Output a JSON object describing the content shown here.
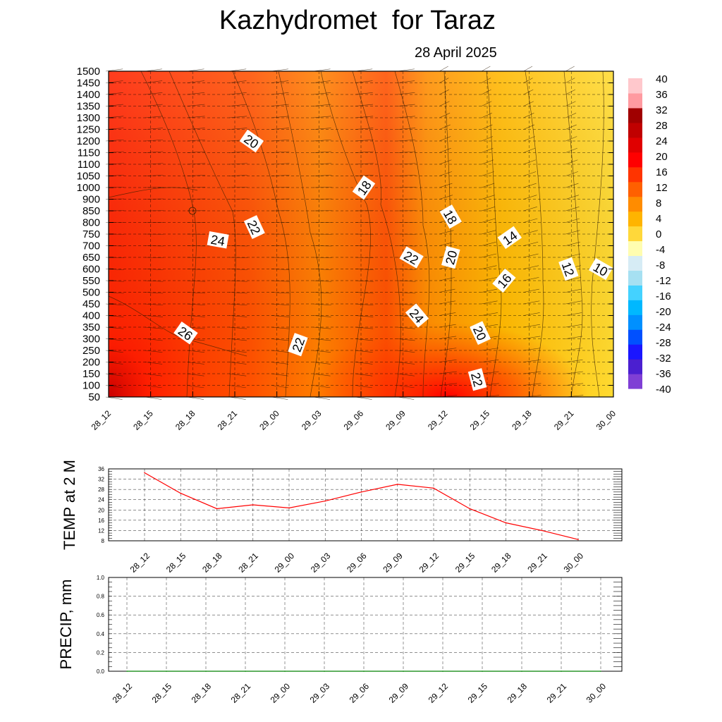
{
  "header": {
    "title": "Kazhydromet  for Taraz",
    "date": "28 April 2025"
  },
  "chart_data": [
    {
      "type": "heatmap",
      "x_ticks": [
        "28_12",
        "28_15",
        "28_18",
        "28_21",
        "29_00",
        "29_03",
        "29_06",
        "29_09",
        "29_12",
        "29_15",
        "29_18",
        "29_21",
        "30_00"
      ],
      "y_ticks": [
        50,
        100,
        150,
        200,
        250,
        300,
        350,
        400,
        450,
        500,
        550,
        600,
        650,
        700,
        750,
        800,
        850,
        900,
        1000,
        1050,
        1100,
        1150,
        1200,
        1250,
        1300,
        1350,
        1400,
        1450,
        1500
      ],
      "colorbar_ticks": [
        40,
        36,
        32,
        28,
        24,
        20,
        16,
        12,
        8,
        4,
        0,
        -4,
        -8,
        -12,
        -16,
        -20,
        -24,
        -28,
        -32,
        -36,
        -40
      ],
      "colorbar_range": [
        -40,
        40
      ],
      "grid": "dashed horizontal and vertical",
      "temperature_grid_approx": [
        [
          29,
          27,
          26,
          25,
          23,
          22,
          20,
          24,
          20,
          18,
          14,
          12,
          8
        ],
        [
          27,
          26,
          25,
          24,
          23,
          22,
          20,
          23,
          20,
          17,
          14,
          11,
          9
        ],
        [
          26,
          25,
          24,
          23,
          22,
          21,
          20,
          22,
          19,
          16,
          13,
          11,
          9
        ],
        [
          24,
          24,
          23,
          22,
          21,
          20,
          18,
          20,
          18,
          15,
          12,
          10,
          9
        ],
        [
          23,
          23,
          22,
          21,
          20,
          19,
          17,
          19,
          17,
          14,
          11,
          9,
          8
        ]
      ],
      "contour_labels": [
        {
          "text": "20",
          "x": "28_21+1.2h",
          "level_hpa": 1200
        },
        {
          "text": "18",
          "x": "29_06+0.2h",
          "level_hpa": 1000
        },
        {
          "text": "18",
          "x": "29_12+0.4h",
          "level_hpa": 825
        },
        {
          "text": "22",
          "x": "28_21+1.4h",
          "level_hpa": 780
        },
        {
          "text": "24",
          "x": "28_18+1.8h",
          "level_hpa": 725
        },
        {
          "text": "14",
          "x": "29_15+1.6h",
          "level_hpa": 735
        },
        {
          "text": "22",
          "x": "29_09+0.6h",
          "level_hpa": 650
        },
        {
          "text": "20",
          "x": "29_12+0.4h",
          "level_hpa": 650
        },
        {
          "text": "12",
          "x": "29_21-0.2h",
          "level_hpa": 600
        },
        {
          "text": "10",
          "x": "29_21+2.1h",
          "level_hpa": 600
        },
        {
          "text": "16",
          "x": "29_15+1.2h",
          "level_hpa": 550
        },
        {
          "text": "24",
          "x": "29_09+1.0h",
          "level_hpa": 400
        },
        {
          "text": "26",
          "x": "28_15+2.5h",
          "level_hpa": 325
        },
        {
          "text": "22",
          "x": "29_00+1.5h",
          "level_hpa": 275
        },
        {
          "text": "20",
          "x": "29_12+2.5h",
          "level_hpa": 325
        },
        {
          "text": "22",
          "x": "29_12+2.3h",
          "level_hpa": 125
        }
      ],
      "colors": [
        "#7f3fd5",
        "#4b1fd0",
        "#1a16ff",
        "#0050ff",
        "#0090ff",
        "#00b8ff",
        "#44d2ff",
        "#a6e0f2",
        "#d6ecf5",
        "#fffdb0",
        "#ffd83a",
        "#ffb400",
        "#ff8c00",
        "#ff6000",
        "#ff3400",
        "#ff0000",
        "#e00000",
        "#c00000",
        "#a00000",
        "#ff9aa0",
        "#ffc8cc"
      ]
    },
    {
      "type": "line",
      "ylabel": "TEMP at 2 M",
      "x": [
        "28_12",
        "28_15",
        "28_18",
        "28_21",
        "29_00",
        "29_03",
        "29_06",
        "29_09",
        "29_12",
        "29_15",
        "29_18",
        "29_21",
        "30_00"
      ],
      "series": [
        {
          "values": [
            34.5,
            26.5,
            20.5,
            22,
            20.8,
            23.5,
            27,
            30,
            28.5,
            20.5,
            15,
            12,
            8.5
          ]
        }
      ],
      "ylim": [
        8,
        36
      ],
      "y_ticks": [
        8,
        12,
        16,
        20,
        24,
        28,
        32,
        36
      ],
      "grid": true,
      "color": "#ff0000"
    },
    {
      "type": "line",
      "ylabel": "PRECIP, mm",
      "x": [
        "28_12",
        "28_15",
        "28_18",
        "28_21",
        "29_00",
        "29_03",
        "29_06",
        "29_09",
        "29_12",
        "29_15",
        "29_18",
        "29_21",
        "30_00"
      ],
      "series": [
        {
          "values": [
            0,
            0,
            0,
            0,
            0,
            0,
            0,
            0,
            0,
            0,
            0,
            0,
            0
          ]
        }
      ],
      "ylim": [
        0,
        1
      ],
      "y_ticks": [
        "0.0",
        "0.2",
        "0.4",
        "0.6",
        "0.8",
        "1.0"
      ],
      "grid": true,
      "color": "#008000"
    }
  ]
}
